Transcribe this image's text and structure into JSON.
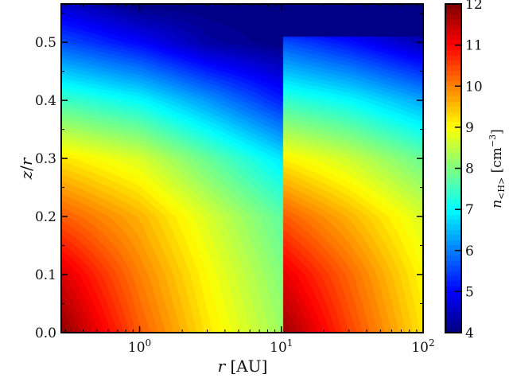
{
  "chart_data": {
    "type": "heatmap",
    "style": "filled-contour",
    "xlabel": "r [AU]",
    "xlabel_var": "r",
    "xlabel_unit": "[AU]",
    "ylabel": "z/r",
    "ylabel_num": "z",
    "ylabel_den": "r",
    "xscale": "log",
    "xlim": [
      0.28,
      100
    ],
    "ylim": [
      0,
      0.566
    ],
    "xticks": [
      {
        "value": 1,
        "base": "10",
        "exp": "0"
      },
      {
        "value": 10,
        "base": "10",
        "exp": "1"
      },
      {
        "value": 100,
        "base": "10",
        "exp": "2"
      }
    ],
    "yticks": [
      "0.0",
      "0.1",
      "0.2",
      "0.3",
      "0.4",
      "0.5"
    ],
    "colorbar": {
      "label": "n<H> [cm^-3]",
      "label_main": "n",
      "label_sub": "<H>",
      "label_unit": "[cm",
      "label_exp": "−3",
      "label_close": "]",
      "colormap": "jet",
      "range": [
        4,
        12
      ],
      "ticks": [
        "4",
        "5",
        "6",
        "7",
        "8",
        "9",
        "10",
        "11",
        "12"
      ]
    },
    "z_grid": [
      0,
      0.1,
      0.2,
      0.3,
      0.4,
      0.5,
      0.566
    ],
    "regions": [
      {
        "r_range": [
          0.28,
          10.3
        ],
        "r_grid": [
          0.28,
          1,
          3,
          10.3
        ],
        "values": [
          [
            11.9,
            10.3,
            9.2,
            8.2
          ],
          [
            11.3,
            10.0,
            9.0,
            8.0
          ],
          [
            10.3,
            9.6,
            8.7,
            7.7
          ],
          [
            9.2,
            8.7,
            7.8,
            6.8
          ],
          [
            7.5,
            7.0,
            6.2,
            5.2
          ],
          [
            5.6,
            5.0,
            4.3,
            4.0
          ],
          [
            4.6,
            4.0,
            4.0,
            4.0
          ]
        ]
      },
      {
        "r_range": [
          10.3,
          100
        ],
        "r_grid": [
          10.3,
          30,
          100
        ],
        "z_cutoff": 0.51,
        "values": [
          [
            11.8,
            10.5,
            9.2
          ],
          [
            11.2,
            10.2,
            9.0
          ],
          [
            10.3,
            9.6,
            8.7
          ],
          [
            9.1,
            8.6,
            7.8
          ],
          [
            7.4,
            7.0,
            6.3
          ],
          [
            5.6,
            5.1,
            4.4
          ],
          [
            4.0,
            4.0,
            4.0
          ]
        ]
      }
    ]
  }
}
